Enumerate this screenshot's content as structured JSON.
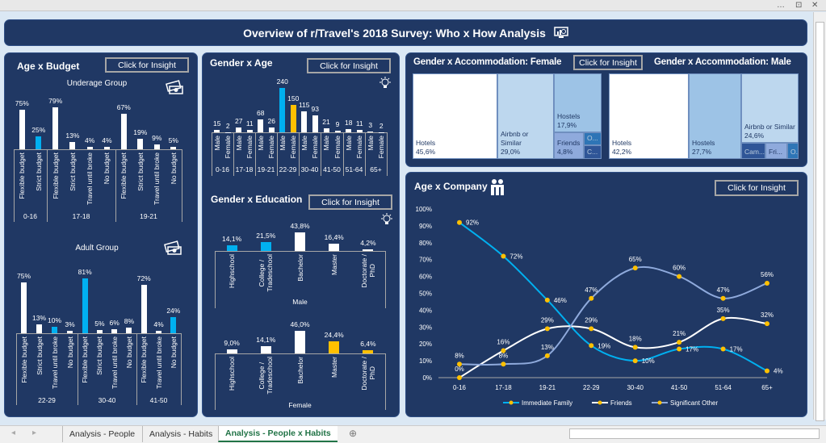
{
  "window": {
    "more_icon": "…",
    "restore_icon": "⊡",
    "close_icon": "✕"
  },
  "title": {
    "text": "Overview of r/Travel's 2018 Survey: Who x How Analysis",
    "icon": "monitor-chart-icon"
  },
  "panels": {
    "age_budget": {
      "title": "Age x Budget",
      "button": "Click for Insight",
      "underage_title": "Underage Group",
      "adult_title": "Adult Group",
      "icon": "money-icon"
    },
    "gender_age": {
      "title": "Gender x Age",
      "button": "Click for Insight",
      "icon": "lightbulb-icon"
    },
    "gender_education": {
      "title": "Gender x Education",
      "button": "Click for Insight",
      "icon": "lightbulb-icon"
    },
    "gender_accommodation": {
      "female_title": "Gender x Accommodation: Female",
      "male_title": "Gender x Accommodation: Male",
      "button": "Click for Insight"
    },
    "age_company": {
      "title": "Age x Company",
      "button": "Click for Insight",
      "icon": "family-icon"
    }
  },
  "colors": {
    "panel": "#203864",
    "white": "#ffffff",
    "blue": "#00b0f0",
    "yellow": "#ffc000",
    "lavender": "#8faadc",
    "marker": "#ffc000"
  },
  "tabs": [
    {
      "label": "Analysis - People"
    },
    {
      "label": "Analysis - Habits"
    },
    {
      "label": "Analysis - People x Habits",
      "active": true
    }
  ],
  "chart_data": [
    {
      "type": "bar",
      "title": "Underage Group",
      "groups": [
        {
          "label": "0-16",
          "bars": [
            {
              "label": "Flexible budget",
              "value": 75,
              "text": "75%",
              "color": "#ffffff"
            },
            {
              "label": "Strict budget",
              "value": 25,
              "text": "25%",
              "color": "#00b0f0"
            }
          ]
        },
        {
          "label": "17-18",
          "bars": [
            {
              "label": "Flexible budget",
              "value": 79,
              "text": "79%",
              "color": "#ffffff"
            },
            {
              "label": "Strict budget",
              "value": 13,
              "text": "13%",
              "color": "#ffffff"
            },
            {
              "label": "Travel until broke",
              "value": 4,
              "text": "4%",
              "color": "#ffffff"
            },
            {
              "label": "No budget",
              "value": 4,
              "text": "4%",
              "color": "#ffffff"
            }
          ]
        },
        {
          "label": "19-21",
          "bars": [
            {
              "label": "Flexible budget",
              "value": 67,
              "text": "67%",
              "color": "#ffffff"
            },
            {
              "label": "Strict budget",
              "value": 19,
              "text": "19%",
              "color": "#ffffff"
            },
            {
              "label": "Travel until broke",
              "value": 9,
              "text": "9%",
              "color": "#ffffff"
            },
            {
              "label": "No budget",
              "value": 5,
              "text": "5%",
              "color": "#ffffff"
            }
          ]
        }
      ]
    },
    {
      "type": "bar",
      "title": "Adult Group",
      "groups": [
        {
          "label": "22-29",
          "bars": [
            {
              "label": "Flexible budget",
              "value": 75,
              "text": "75%",
              "color": "#ffffff"
            },
            {
              "label": "Strict budget",
              "value": 13,
              "text": "13%",
              "color": "#ffffff"
            },
            {
              "label": "Travel until broke",
              "value": 10,
              "text": "10%",
              "color": "#00b0f0"
            },
            {
              "label": "No budget",
              "value": 3,
              "text": "3%",
              "color": "#ffffff"
            }
          ]
        },
        {
          "label": "30-40",
          "bars": [
            {
              "label": "Flexible budget",
              "value": 81,
              "text": "81%",
              "color": "#00b0f0"
            },
            {
              "label": "Strict budget",
              "value": 5,
              "text": "5%",
              "color": "#ffffff"
            },
            {
              "label": "Travel until broke",
              "value": 6,
              "text": "6%",
              "color": "#ffffff"
            },
            {
              "label": "No budget",
              "value": 8,
              "text": "8%",
              "color": "#ffffff"
            }
          ]
        },
        {
          "label": "41-50",
          "bars": [
            {
              "label": "Flexible budget",
              "value": 72,
              "text": "72%",
              "color": "#ffffff"
            },
            {
              "label": "Travel until broke",
              "value": 4,
              "text": "4%",
              "color": "#ffffff"
            },
            {
              "label": "No budget",
              "value": 24,
              "text": "24%",
              "color": "#00b0f0"
            }
          ]
        }
      ]
    },
    {
      "type": "bar",
      "title": "Gender x Age",
      "groups": [
        {
          "label": "0-16",
          "bars": [
            {
              "label": "Male",
              "value": 15,
              "text": "15",
              "color": "#ffffff"
            },
            {
              "label": "Female",
              "value": 2,
              "text": "2",
              "color": "#ffffff"
            }
          ]
        },
        {
          "label": "17-18",
          "bars": [
            {
              "label": "Male",
              "value": 27,
              "text": "27",
              "color": "#ffffff"
            },
            {
              "label": "Female",
              "value": 11,
              "text": "11",
              "color": "#ffffff"
            }
          ]
        },
        {
          "label": "19-21",
          "bars": [
            {
              "label": "Male",
              "value": 68,
              "text": "68",
              "color": "#ffffff"
            },
            {
              "label": "Female",
              "value": 26,
              "text": "26",
              "color": "#ffffff"
            }
          ]
        },
        {
          "label": "22-29",
          "bars": [
            {
              "label": "Male",
              "value": 240,
              "text": "240",
              "color": "#00b0f0"
            },
            {
              "label": "Female",
              "value": 150,
              "text": "150",
              "color": "#ffc000"
            }
          ]
        },
        {
          "label": "30-40",
          "bars": [
            {
              "label": "Male",
              "value": 115,
              "text": "115",
              "color": "#ffffff"
            },
            {
              "label": "Female",
              "value": 93,
              "text": "93",
              "color": "#ffffff"
            }
          ]
        },
        {
          "label": "41-50",
          "bars": [
            {
              "label": "Male",
              "value": 21,
              "text": "21",
              "color": "#ffffff"
            },
            {
              "label": "Female",
              "value": 9,
              "text": "9",
              "color": "#ffffff"
            }
          ]
        },
        {
          "label": "51-64",
          "bars": [
            {
              "label": "Male",
              "value": 18,
              "text": "18",
              "color": "#ffffff"
            },
            {
              "label": "Female",
              "value": 11,
              "text": "11",
              "color": "#ffffff"
            }
          ]
        },
        {
          "label": "65+",
          "bars": [
            {
              "label": "Male",
              "value": 3,
              "text": "3",
              "color": "#ffffff"
            },
            {
              "label": "Female",
              "value": 2,
              "text": "2",
              "color": "#ffffff"
            }
          ]
        }
      ]
    },
    {
      "type": "bar",
      "title": "Gender x Education",
      "groups": [
        {
          "label": "Male",
          "bars": [
            {
              "label": "Highschool",
              "value": 14.1,
              "text": "14,1%",
              "color": "#00b0f0"
            },
            {
              "label": "College /\nTradeschool",
              "value": 21.5,
              "text": "21,5%",
              "color": "#00b0f0"
            },
            {
              "label": "Bachelor",
              "value": 43.8,
              "text": "43,8%",
              "color": "#ffffff"
            },
            {
              "label": "Master",
              "value": 16.4,
              "text": "16,4%",
              "color": "#ffffff"
            },
            {
              "label": "Doctorate /\nPhD",
              "value": 4.2,
              "text": "4,2%",
              "color": "#ffffff"
            }
          ]
        }
      ]
    },
    {
      "type": "bar",
      "groups": [
        {
          "label": "Female",
          "bars": [
            {
              "label": "Highschool",
              "value": 9.0,
              "text": "9,0%",
              "color": "#ffffff"
            },
            {
              "label": "College /\nTradeschool",
              "value": 14.1,
              "text": "14,1%",
              "color": "#ffffff"
            },
            {
              "label": "Bachelor",
              "value": 46.0,
              "text": "46,0%",
              "color": "#ffffff"
            },
            {
              "label": "Master",
              "value": 24.4,
              "text": "24,4%",
              "color": "#ffc000"
            },
            {
              "label": "Doctorate /\nPhD",
              "value": 6.4,
              "text": "6,4%",
              "color": "#ffc000"
            }
          ]
        }
      ]
    },
    {
      "type": "treemap",
      "title": "Gender x Accommodation: Female",
      "items": [
        {
          "label": "Hotels",
          "value": 45.6,
          "text": "45,6%",
          "color": "#ffffff"
        },
        {
          "label": "Airbnb or Similar",
          "value": 29.0,
          "text": "29,0%",
          "color": "#bdd7ee"
        },
        {
          "label": "Hostels",
          "value": 17.9,
          "text": "17,9%",
          "color": "#9dc3e6"
        },
        {
          "label": "Friends",
          "value": 4.8,
          "text": "4,8%",
          "color": "#8faadc"
        },
        {
          "label": "O...",
          "color": "#2e75b6"
        },
        {
          "label": "C...",
          "color": "#2f5597"
        }
      ]
    },
    {
      "type": "treemap",
      "title": "Gender x Accommodation: Male",
      "items": [
        {
          "label": "Hotels",
          "value": 42.2,
          "text": "42,2%",
          "color": "#ffffff"
        },
        {
          "label": "Hostels",
          "value": 27.7,
          "text": "27,7%",
          "color": "#9dc3e6"
        },
        {
          "label": "Airbnb or Similar",
          "value": 24.6,
          "text": "24,6%",
          "color": "#bdd7ee"
        },
        {
          "label": "Cam...",
          "color": "#2f5597"
        },
        {
          "label": "Fri...",
          "color": "#8faadc"
        },
        {
          "label": "O...",
          "color": "#2e75b6"
        }
      ]
    },
    {
      "type": "line",
      "title": "Age x Company",
      "categories": [
        "0-16",
        "17-18",
        "19-21",
        "22-29",
        "30-40",
        "41-50",
        "51-64",
        "65+"
      ],
      "ylim": [
        0,
        100
      ],
      "yticks": [
        "0%",
        "10%",
        "20%",
        "30%",
        "40%",
        "50%",
        "60%",
        "70%",
        "80%",
        "90%",
        "100%"
      ],
      "legend": "bottom",
      "smooth": true,
      "series": [
        {
          "name": "Immediate Family",
          "values": [
            92,
            72,
            46,
            19,
            10,
            17,
            17,
            4
          ],
          "labels": [
            "92%",
            "72%",
            "46%",
            "19%",
            "10%",
            "17%",
            "17%",
            "4%"
          ],
          "color": "#00b0f0"
        },
        {
          "name": "Friends",
          "values": [
            0,
            16,
            29,
            29,
            18,
            21,
            35,
            32
          ],
          "labels": [
            "0%",
            "16%",
            "29%",
            "29%",
            "18%",
            "21%",
            "35%",
            "32%"
          ],
          "color": "#ffffff"
        },
        {
          "name": "Significant Other",
          "values": [
            8,
            8,
            13,
            47,
            65,
            60,
            47,
            56
          ],
          "labels": [
            "8%",
            "8%",
            "13%",
            "47%",
            "65%",
            "60%",
            "47%",
            "56%"
          ],
          "color": "#8faadc"
        }
      ]
    }
  ]
}
